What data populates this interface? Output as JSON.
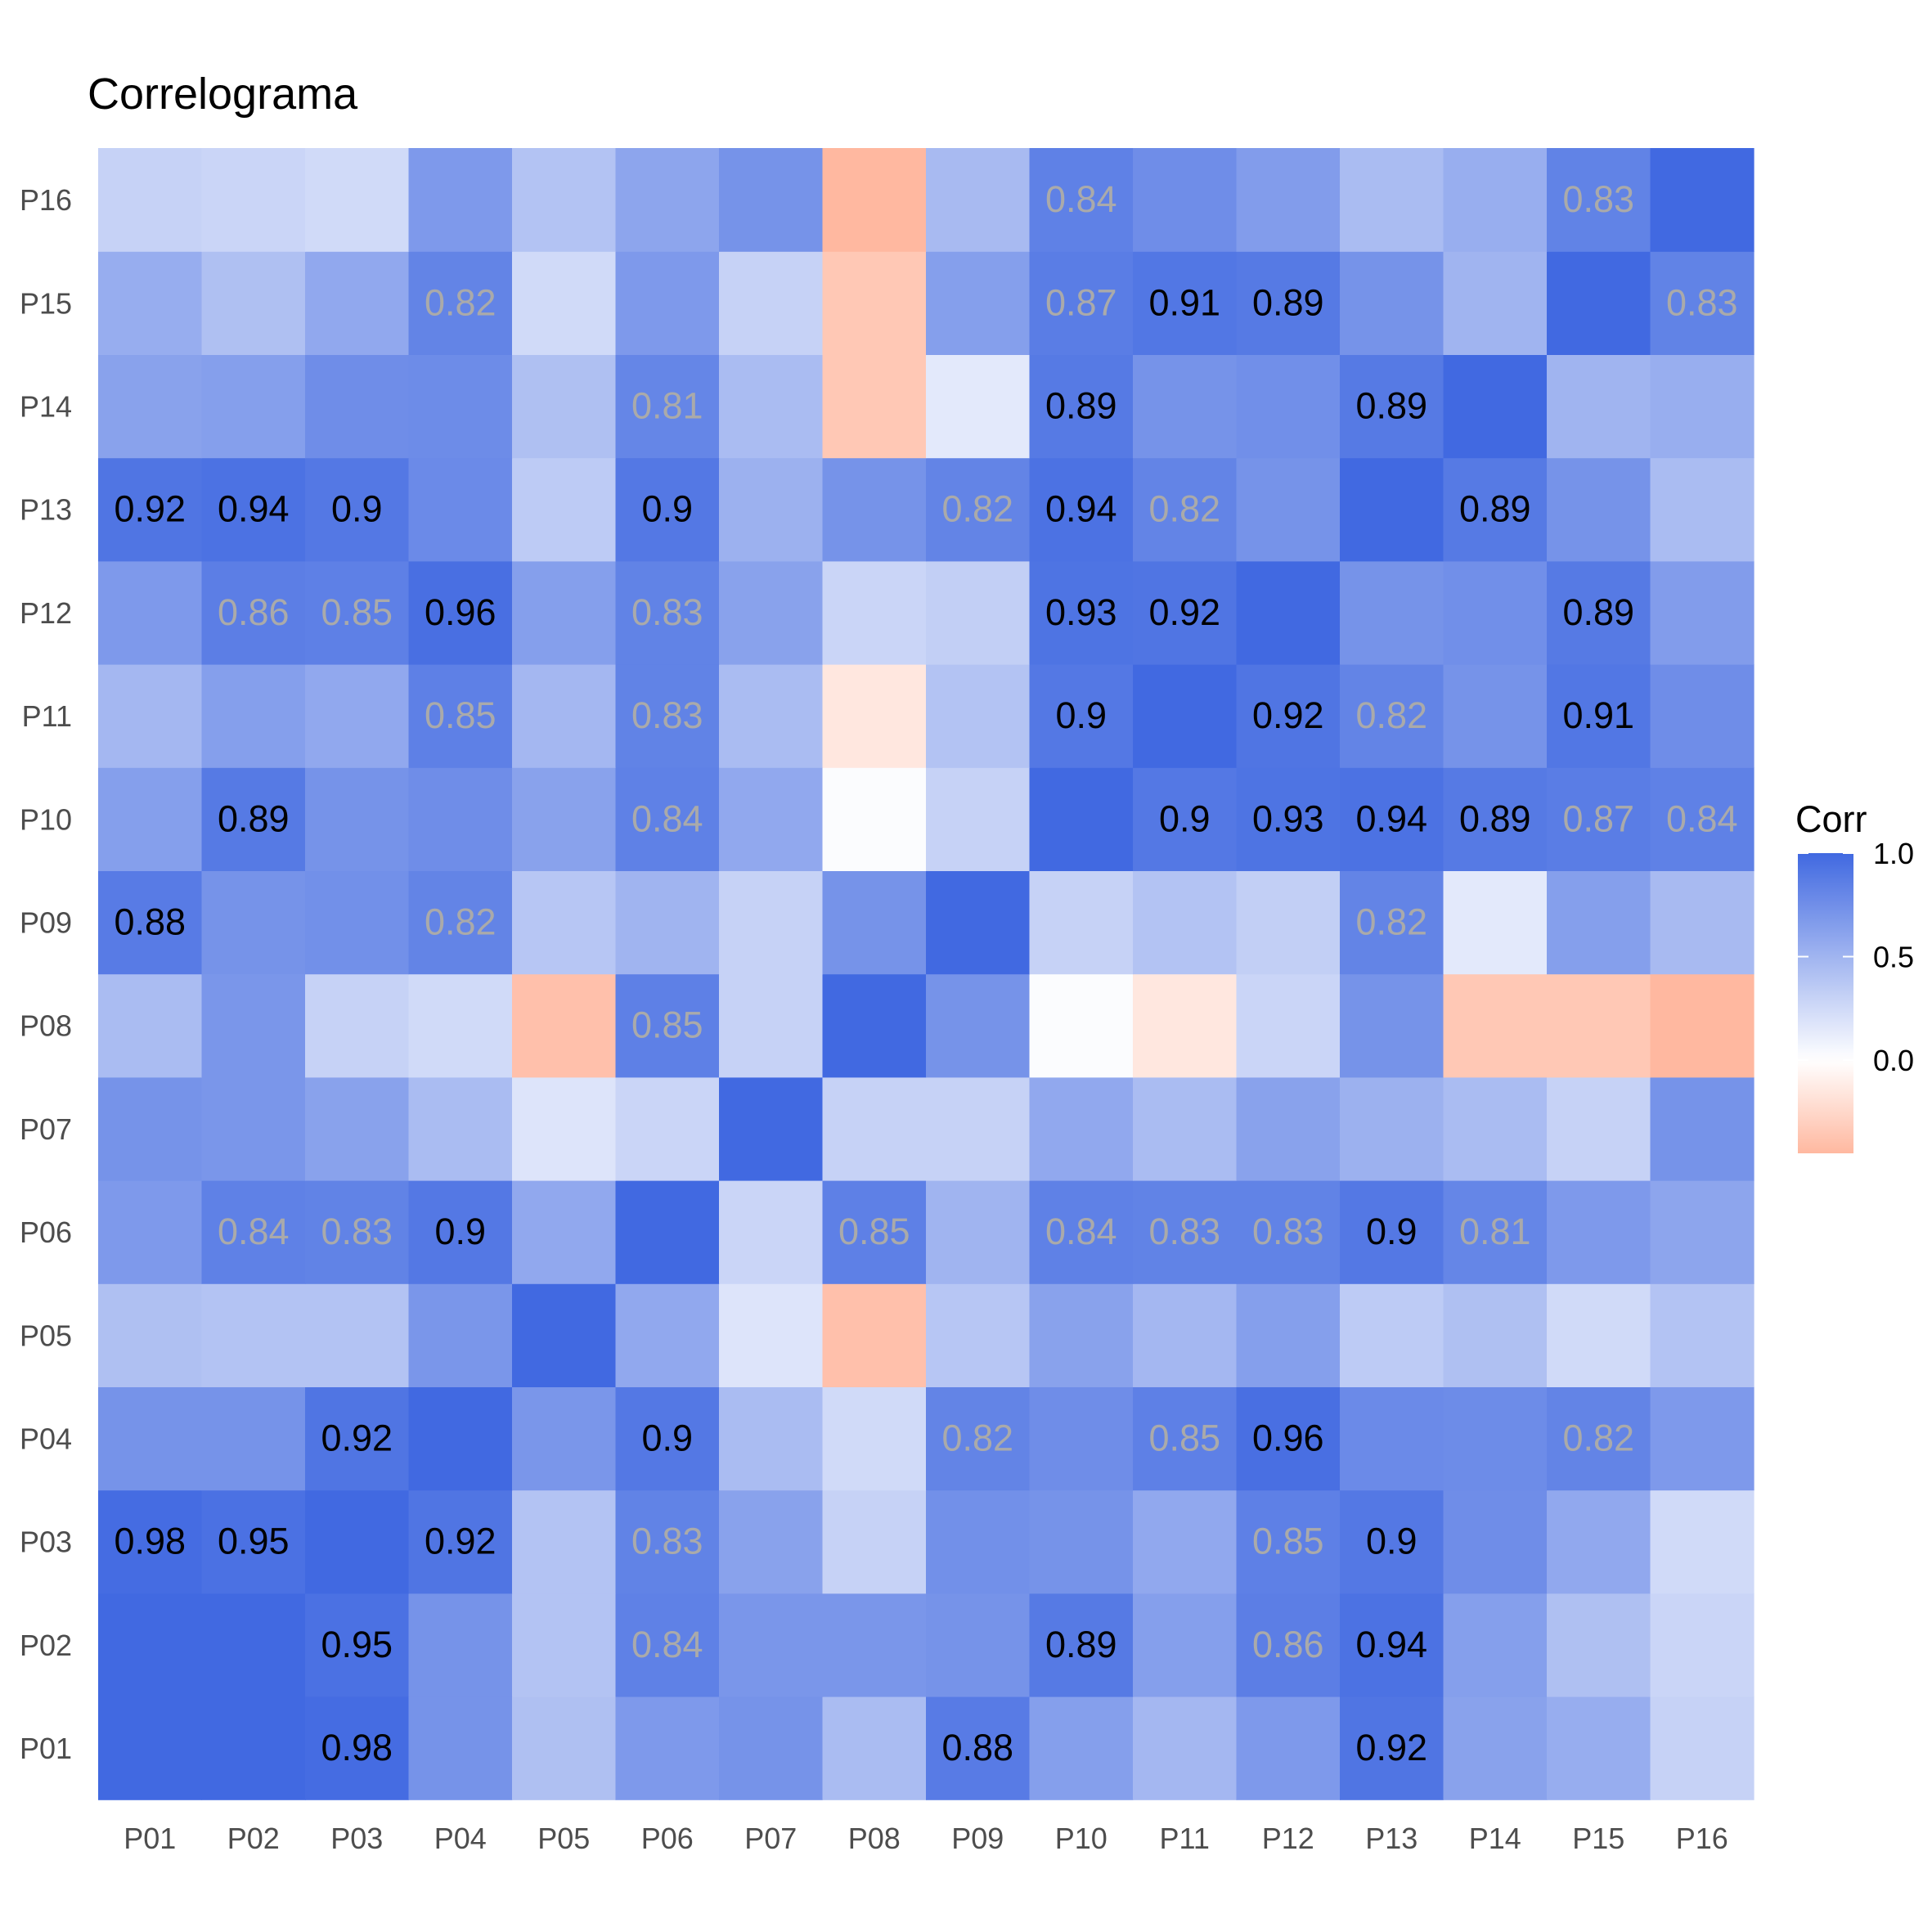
{
  "chart_data": {
    "type": "heatmap",
    "title": "Correlograma",
    "variables": [
      "P01",
      "P02",
      "P03",
      "P04",
      "P05",
      "P06",
      "P07",
      "P08",
      "P09",
      "P10",
      "P11",
      "P12",
      "P13",
      "P14",
      "P15",
      "P16"
    ],
    "x_labels": [
      "P01",
      "P02",
      "P03",
      "P04",
      "P05",
      "P06",
      "P07",
      "P08",
      "P09",
      "P10",
      "P11",
      "P12",
      "P13",
      "P14",
      "P15",
      "P16"
    ],
    "y_labels": [
      "P16",
      "P15",
      "P14",
      "P13",
      "P12",
      "P11",
      "P10",
      "P09",
      "P08",
      "P07",
      "P06",
      "P05",
      "P04",
      "P03",
      "P02",
      "P01"
    ],
    "matrix": [
      [
        1.0,
        1.0,
        0.98,
        0.72,
        0.42,
        0.68,
        0.72,
        0.45,
        0.88,
        0.64,
        0.48,
        0.68,
        0.92,
        0.62,
        0.55,
        0.3
      ],
      [
        1.0,
        1.0,
        0.95,
        0.72,
        0.4,
        0.84,
        0.7,
        0.7,
        0.72,
        0.89,
        0.64,
        0.86,
        0.94,
        0.64,
        0.42,
        0.28
      ],
      [
        0.98,
        0.95,
        1.0,
        0.92,
        0.4,
        0.83,
        0.62,
        0.3,
        0.74,
        0.72,
        0.58,
        0.85,
        0.9,
        0.76,
        0.58,
        0.25
      ],
      [
        0.72,
        0.72,
        0.92,
        1.0,
        0.7,
        0.9,
        0.45,
        0.25,
        0.82,
        0.76,
        0.85,
        0.96,
        0.78,
        0.77,
        0.82,
        0.68
      ],
      [
        0.42,
        0.4,
        0.4,
        0.7,
        1.0,
        0.58,
        0.18,
        -0.4,
        0.38,
        0.62,
        0.48,
        0.64,
        0.35,
        0.42,
        0.25,
        0.4
      ],
      [
        0.68,
        0.84,
        0.83,
        0.9,
        0.58,
        1.0,
        0.28,
        0.85,
        0.5,
        0.84,
        0.83,
        0.83,
        0.9,
        0.81,
        0.68,
        0.6
      ],
      [
        0.72,
        0.7,
        0.62,
        0.45,
        0.18,
        0.28,
        1.0,
        0.3,
        0.3,
        0.58,
        0.45,
        0.62,
        0.52,
        0.45,
        0.3,
        0.72
      ],
      [
        0.45,
        0.7,
        0.3,
        0.25,
        -0.4,
        0.85,
        0.3,
        1.0,
        0.72,
        0.02,
        -0.15,
        0.28,
        0.72,
        -0.35,
        -0.35,
        -0.45
      ],
      [
        0.88,
        0.72,
        0.74,
        0.82,
        0.38,
        0.5,
        0.3,
        0.72,
        1.0,
        0.3,
        0.4,
        0.32,
        0.82,
        0.15,
        0.64,
        0.46
      ],
      [
        0.64,
        0.89,
        0.72,
        0.76,
        0.62,
        0.84,
        0.58,
        0.02,
        0.3,
        1.0,
        0.9,
        0.93,
        0.94,
        0.89,
        0.87,
        0.84
      ],
      [
        0.48,
        0.64,
        0.58,
        0.85,
        0.48,
        0.83,
        0.45,
        -0.15,
        0.4,
        0.9,
        1.0,
        0.92,
        0.82,
        0.72,
        0.91,
        0.76
      ],
      [
        0.68,
        0.86,
        0.85,
        0.96,
        0.64,
        0.83,
        0.62,
        0.28,
        0.32,
        0.93,
        0.92,
        1.0,
        0.72,
        0.75,
        0.89,
        0.66
      ],
      [
        0.92,
        0.94,
        0.9,
        0.78,
        0.35,
        0.9,
        0.52,
        0.72,
        0.82,
        0.94,
        0.82,
        0.72,
        1.0,
        0.89,
        0.72,
        0.45
      ],
      [
        0.62,
        0.64,
        0.76,
        0.77,
        0.42,
        0.81,
        0.45,
        -0.35,
        0.15,
        0.89,
        0.72,
        0.75,
        0.89,
        1.0,
        0.5,
        0.54
      ],
      [
        0.55,
        0.42,
        0.58,
        0.82,
        0.25,
        0.68,
        0.3,
        -0.35,
        0.64,
        0.87,
        0.91,
        0.89,
        0.72,
        0.5,
        1.0,
        0.83
      ],
      [
        0.3,
        0.28,
        0.25,
        0.68,
        0.4,
        0.6,
        0.72,
        -0.45,
        0.46,
        0.84,
        0.76,
        0.66,
        0.45,
        0.54,
        0.83,
        1.0
      ]
    ],
    "labeled_cells": [
      {
        "row": "P16",
        "col": "P10",
        "text": "0.84"
      },
      {
        "row": "P16",
        "col": "P15",
        "text": "0.83"
      },
      {
        "row": "P15",
        "col": "P04",
        "text": "0.82"
      },
      {
        "row": "P15",
        "col": "P10",
        "text": "0.87"
      },
      {
        "row": "P15",
        "col": "P11",
        "text": "0.91"
      },
      {
        "row": "P15",
        "col": "P12",
        "text": "0.89"
      },
      {
        "row": "P15",
        "col": "P16",
        "text": "0.83"
      },
      {
        "row": "P14",
        "col": "P06",
        "text": "0.81"
      },
      {
        "row": "P14",
        "col": "P10",
        "text": "0.89"
      },
      {
        "row": "P14",
        "col": "P13",
        "text": "0.89"
      },
      {
        "row": "P13",
        "col": "P01",
        "text": "0.92"
      },
      {
        "row": "P13",
        "col": "P02",
        "text": "0.94"
      },
      {
        "row": "P13",
        "col": "P03",
        "text": "0.9"
      },
      {
        "row": "P13",
        "col": "P06",
        "text": "0.9"
      },
      {
        "row": "P13",
        "col": "P09",
        "text": "0.82"
      },
      {
        "row": "P13",
        "col": "P10",
        "text": "0.94"
      },
      {
        "row": "P13",
        "col": "P11",
        "text": "0.82"
      },
      {
        "row": "P13",
        "col": "P14",
        "text": "0.89"
      },
      {
        "row": "P12",
        "col": "P02",
        "text": "0.86"
      },
      {
        "row": "P12",
        "col": "P03",
        "text": "0.85"
      },
      {
        "row": "P12",
        "col": "P04",
        "text": "0.96"
      },
      {
        "row": "P12",
        "col": "P06",
        "text": "0.83"
      },
      {
        "row": "P12",
        "col": "P10",
        "text": "0.93"
      },
      {
        "row": "P12",
        "col": "P11",
        "text": "0.92"
      },
      {
        "row": "P12",
        "col": "P15",
        "text": "0.89"
      },
      {
        "row": "P11",
        "col": "P04",
        "text": "0.85"
      },
      {
        "row": "P11",
        "col": "P06",
        "text": "0.83"
      },
      {
        "row": "P11",
        "col": "P10",
        "text": "0.9"
      },
      {
        "row": "P11",
        "col": "P12",
        "text": "0.92"
      },
      {
        "row": "P11",
        "col": "P13",
        "text": "0.82"
      },
      {
        "row": "P11",
        "col": "P15",
        "text": "0.91"
      },
      {
        "row": "P10",
        "col": "P02",
        "text": "0.89"
      },
      {
        "row": "P10",
        "col": "P06",
        "text": "0.84"
      },
      {
        "row": "P10",
        "col": "P11",
        "text": "0.9"
      },
      {
        "row": "P10",
        "col": "P12",
        "text": "0.93"
      },
      {
        "row": "P10",
        "col": "P13",
        "text": "0.94"
      },
      {
        "row": "P10",
        "col": "P14",
        "text": "0.89"
      },
      {
        "row": "P10",
        "col": "P15",
        "text": "0.87"
      },
      {
        "row": "P10",
        "col": "P16",
        "text": "0.84"
      },
      {
        "row": "P09",
        "col": "P01",
        "text": "0.88"
      },
      {
        "row": "P09",
        "col": "P04",
        "text": "0.82"
      },
      {
        "row": "P09",
        "col": "P13",
        "text": "0.82"
      },
      {
        "row": "P08",
        "col": "P06",
        "text": "0.85"
      },
      {
        "row": "P06",
        "col": "P02",
        "text": "0.84"
      },
      {
        "row": "P06",
        "col": "P03",
        "text": "0.83"
      },
      {
        "row": "P06",
        "col": "P04",
        "text": "0.9"
      },
      {
        "row": "P06",
        "col": "P08",
        "text": "0.85"
      },
      {
        "row": "P06",
        "col": "P10",
        "text": "0.84"
      },
      {
        "row": "P06",
        "col": "P11",
        "text": "0.83"
      },
      {
        "row": "P06",
        "col": "P12",
        "text": "0.83"
      },
      {
        "row": "P06",
        "col": "P13",
        "text": "0.9"
      },
      {
        "row": "P06",
        "col": "P14",
        "text": "0.81"
      },
      {
        "row": "P04",
        "col": "P03",
        "text": "0.92"
      },
      {
        "row": "P04",
        "col": "P06",
        "text": "0.9"
      },
      {
        "row": "P04",
        "col": "P09",
        "text": "0.82"
      },
      {
        "row": "P04",
        "col": "P11",
        "text": "0.85"
      },
      {
        "row": "P04",
        "col": "P12",
        "text": "0.96"
      },
      {
        "row": "P04",
        "col": "P15",
        "text": "0.82"
      },
      {
        "row": "P03",
        "col": "P01",
        "text": "0.98"
      },
      {
        "row": "P03",
        "col": "P02",
        "text": "0.95"
      },
      {
        "row": "P03",
        "col": "P04",
        "text": "0.92"
      },
      {
        "row": "P03",
        "col": "P06",
        "text": "0.83"
      },
      {
        "row": "P03",
        "col": "P12",
        "text": "0.85"
      },
      {
        "row": "P03",
        "col": "P13",
        "text": "0.9"
      },
      {
        "row": "P02",
        "col": "P03",
        "text": "0.95"
      },
      {
        "row": "P02",
        "col": "P06",
        "text": "0.84"
      },
      {
        "row": "P02",
        "col": "P10",
        "text": "0.89"
      },
      {
        "row": "P02",
        "col": "P12",
        "text": "0.86"
      },
      {
        "row": "P02",
        "col": "P13",
        "text": "0.94"
      },
      {
        "row": "P01",
        "col": "P03",
        "text": "0.98"
      },
      {
        "row": "P01",
        "col": "P09",
        "text": "0.88"
      },
      {
        "row": "P01",
        "col": "P13",
        "text": "0.92"
      }
    ],
    "legend": {
      "title": "Corr",
      "ticks": [
        "1.0",
        "0.5",
        "0.0"
      ],
      "tick_values": [
        1.0,
        0.5,
        0.0
      ],
      "range": [
        -0.45,
        1.0
      ],
      "placement": "right"
    },
    "colors": {
      "high": "#4169E1",
      "mid": "#FFFFFF",
      "low": "#FFB8A0",
      "label_dark": "#000000",
      "label_light": "#AAAAAA"
    },
    "grid": false
  }
}
